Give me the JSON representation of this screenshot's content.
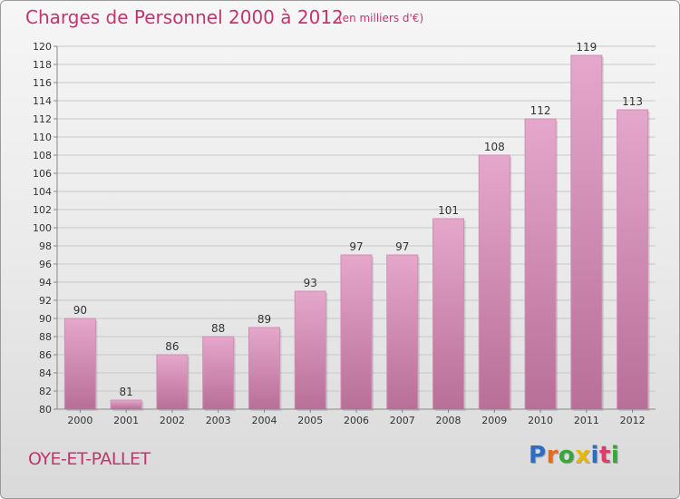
{
  "header": {
    "title": "Charges de Personnel 2000 à 2012",
    "subtitle": "(en milliers d'€)"
  },
  "footer": {
    "commune": "OYE-ET-PALLET",
    "logo_letters": [
      "P",
      "r",
      "o",
      "x",
      "i",
      "t",
      "i"
    ],
    "logo_colors": [
      "#2b6cc4",
      "#e86a1c",
      "#3aa63a",
      "#e8b800",
      "#2b6cc4",
      "#e03a6e",
      "#3aa63a"
    ]
  },
  "colors": {
    "bar_top": "#e5a7cb",
    "bar_bottom": "#b86f98",
    "grid": "#c8c8c8",
    "axis": "#888888"
  },
  "chart_data": {
    "type": "bar",
    "title": "Charges de Personnel 2000 à 2012",
    "subtitle": "(en milliers d'€)",
    "xlabel": "",
    "ylabel": "",
    "categories": [
      "2000",
      "2001",
      "2002",
      "2003",
      "2004",
      "2005",
      "2006",
      "2007",
      "2008",
      "2009",
      "2010",
      "2011",
      "2012"
    ],
    "values": [
      90,
      81,
      86,
      88,
      89,
      93,
      97,
      97,
      101,
      108,
      112,
      119,
      113
    ],
    "ylim": [
      80,
      120
    ],
    "yticks": [
      80,
      82,
      84,
      86,
      88,
      90,
      92,
      94,
      96,
      98,
      100,
      102,
      104,
      106,
      108,
      110,
      112,
      114,
      116,
      118,
      120
    ],
    "grid": true
  }
}
